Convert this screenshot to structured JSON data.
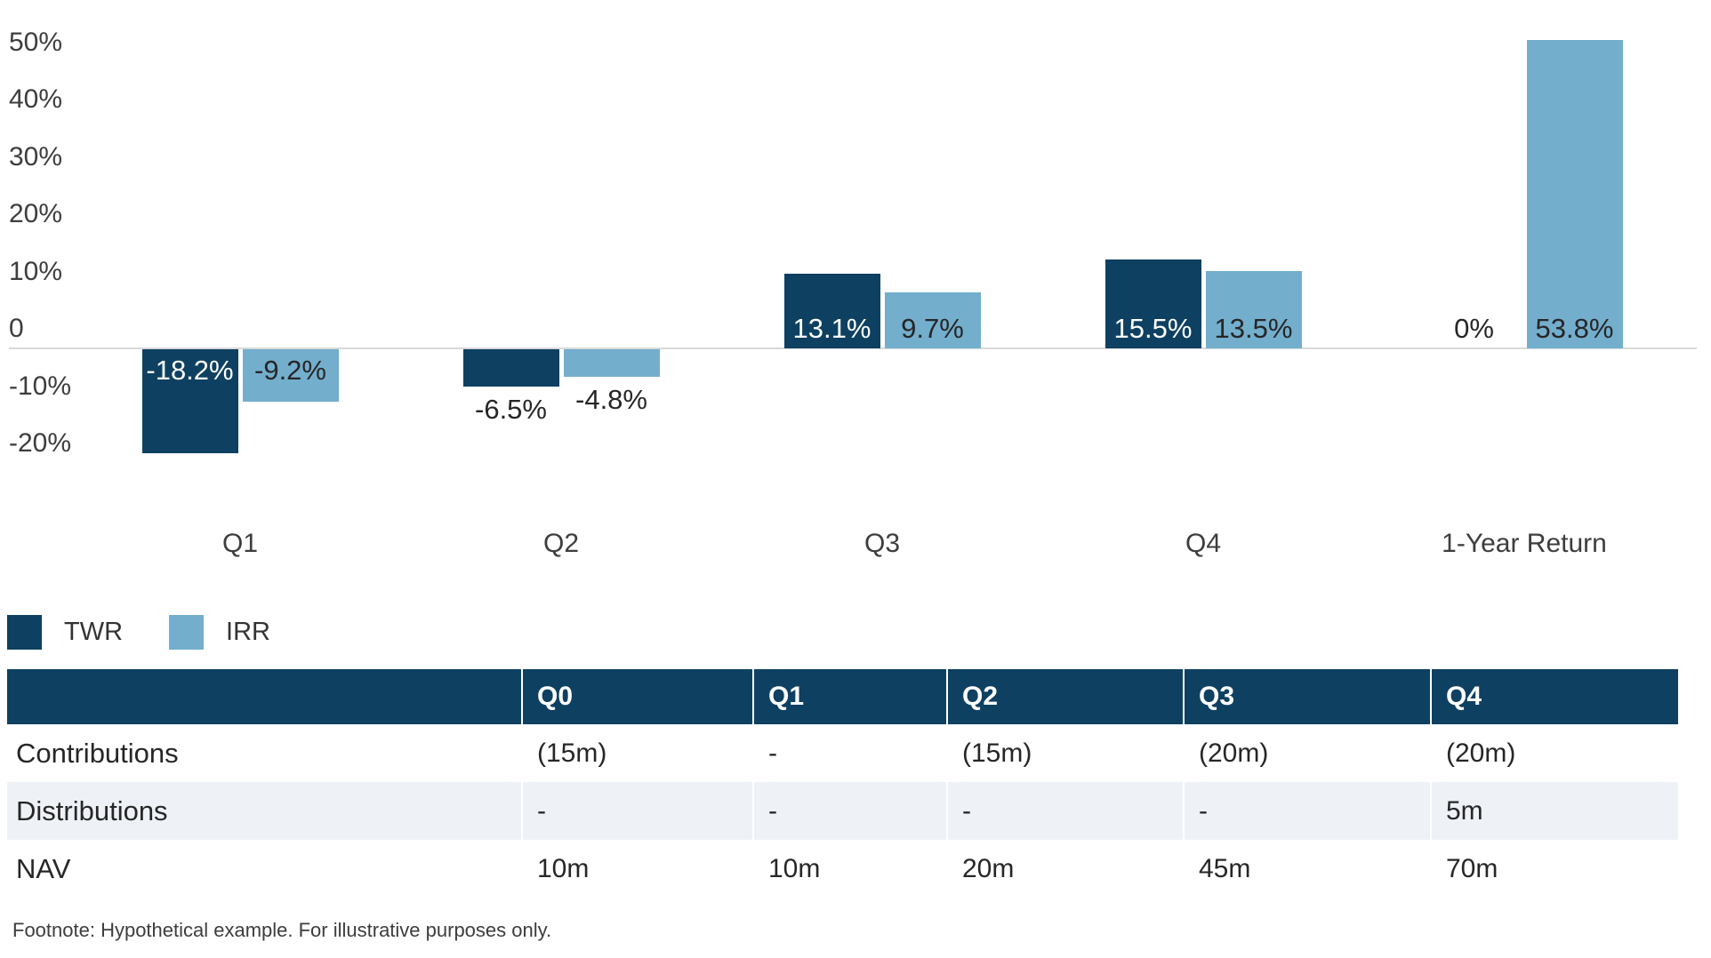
{
  "chart_data": {
    "type": "bar",
    "title": "",
    "xlabel": "",
    "ylabel": "",
    "categories": [
      "Q1",
      "Q2",
      "Q3",
      "Q4",
      "1-Year Return"
    ],
    "series": [
      {
        "name": "TWR",
        "color": "#0e4061",
        "values": [
          -18.2,
          -6.5,
          13.1,
          15.5,
          0
        ],
        "labels": [
          "-18.2%",
          "-6.5%",
          "13.1%",
          "15.5%",
          "0%"
        ]
      },
      {
        "name": "IRR",
        "color": "#73aecd",
        "values": [
          -9.2,
          -4.8,
          9.7,
          13.5,
          53.8
        ],
        "labels": [
          "-9.2%",
          "-4.8%",
          "9.7%",
          "13.5%",
          "53.8%"
        ]
      }
    ],
    "y_ticks": [
      {
        "label": "50%",
        "value": 50
      },
      {
        "label": "40%",
        "value": 40
      },
      {
        "label": "30%",
        "value": 30
      },
      {
        "label": "20%",
        "value": 20
      },
      {
        "label": "10%",
        "value": 10
      },
      {
        "label": "0",
        "value": 0
      },
      {
        "label": "-10%",
        "value": -10
      },
      {
        "label": "-20%",
        "value": -20
      }
    ],
    "ylim": [
      -24,
      56
    ],
    "grid": "zero-line-only",
    "legend_position": "bottom-left"
  },
  "legend": {
    "items": [
      {
        "label": "TWR",
        "color": "#0e4061"
      },
      {
        "label": "IRR",
        "color": "#73aecd"
      }
    ]
  },
  "table": {
    "header": [
      "",
      "Q0",
      "Q1",
      "Q2",
      "Q3",
      "Q4"
    ],
    "rows": [
      {
        "label": "Contributions",
        "values": [
          "(15m)",
          "-",
          "(15m)",
          "(20m)",
          "(20m)"
        ]
      },
      {
        "label": "Distributions",
        "values": [
          "-",
          "-",
          "-",
          "-",
          "5m"
        ]
      },
      {
        "label": "NAV",
        "values": [
          "10m",
          "10m",
          "20m",
          "45m",
          "70m"
        ]
      }
    ]
  },
  "footnote": "Footnote: Hypothetical example. For illustrative purposes only."
}
